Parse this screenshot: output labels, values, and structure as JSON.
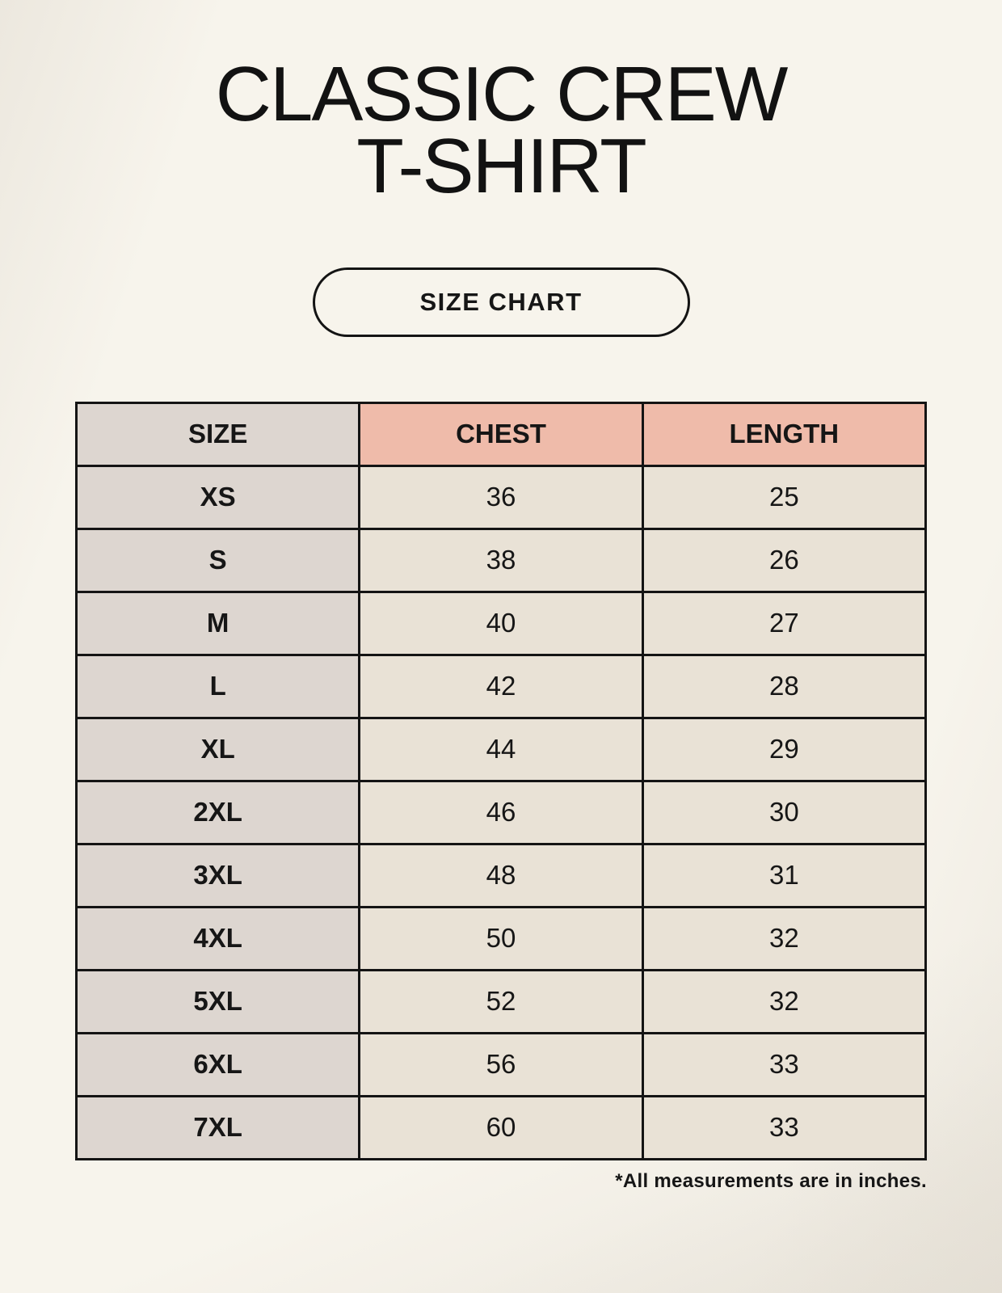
{
  "page": {
    "title_line1": "CLASSIC CREW",
    "title_line2": "T-SHIRT",
    "size_chart_label": "SIZE CHART",
    "footnote": "*All measurements are in inches."
  },
  "table": {
    "headers": [
      "SIZE",
      "CHEST",
      "LENGTH"
    ],
    "rows": [
      {
        "size": "XS",
        "chest": "36",
        "length": "25"
      },
      {
        "size": "S",
        "chest": "38",
        "length": "26"
      },
      {
        "size": "M",
        "chest": "40",
        "length": "27"
      },
      {
        "size": "L",
        "chest": "42",
        "length": "28"
      },
      {
        "size": "XL",
        "chest": "44",
        "length": "29"
      },
      {
        "size": "2XL",
        "chest": "46",
        "length": "30"
      },
      {
        "size": "3XL",
        "chest": "48",
        "length": "31"
      },
      {
        "size": "4XL",
        "chest": "50",
        "length": "32"
      },
      {
        "size": "5XL",
        "chest": "52",
        "length": "32"
      },
      {
        "size": "6XL",
        "chest": "56",
        "length": "33"
      },
      {
        "size": "7XL",
        "chest": "60",
        "length": "33"
      }
    ]
  },
  "colors": {
    "bg": "#f7f4ec",
    "ink": "#161616",
    "border": "#141414",
    "accent": "#efbbaa",
    "gray_cell": "#ddd6d0",
    "beige_cell": "#e9e2d6"
  }
}
